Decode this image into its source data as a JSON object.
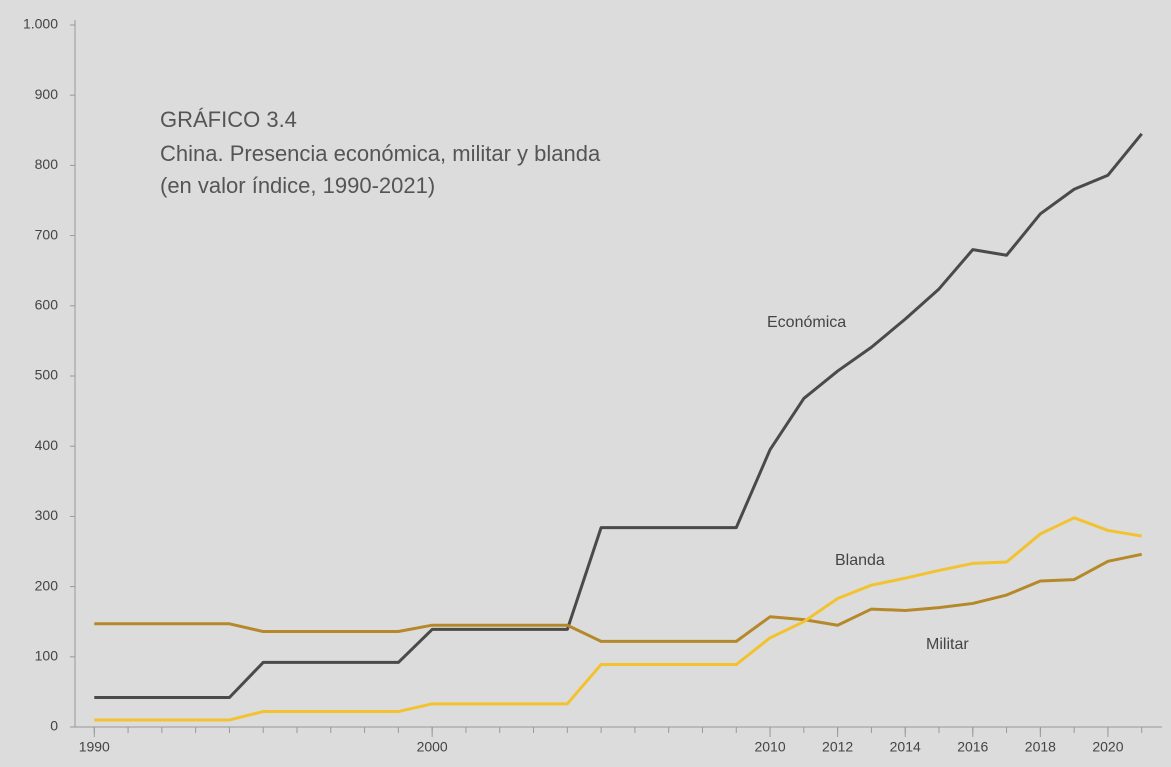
{
  "chart_data": {
    "type": "line",
    "title": "GRÁFICO 3.4",
    "subtitle": [
      "China. Presencia económica, militar y blanda",
      "(en valor índice, 1990-2021)"
    ],
    "x": [
      1990,
      1991,
      1992,
      1993,
      1994,
      1995,
      1996,
      1997,
      1998,
      1999,
      2000,
      2001,
      2002,
      2003,
      2004,
      2005,
      2006,
      2007,
      2008,
      2009,
      2010,
      2011,
      2012,
      2013,
      2014,
      2015,
      2016,
      2017,
      2018,
      2019,
      2020,
      2021
    ],
    "series": [
      {
        "name": "Económica",
        "color": "#4a4a4a",
        "values": [
          42,
          42,
          42,
          42,
          42,
          92,
          92,
          92,
          92,
          92,
          139,
          139,
          139,
          139,
          139,
          284,
          284,
          284,
          284,
          284,
          395,
          468,
          507,
          541,
          581,
          624,
          680,
          672,
          731,
          766,
          786,
          845
        ]
      },
      {
        "name": "Militar",
        "color": "#b5892a",
        "values": [
          147,
          147,
          147,
          147,
          147,
          136,
          136,
          136,
          136,
          136,
          145,
          145,
          145,
          145,
          145,
          122,
          122,
          122,
          122,
          122,
          157,
          153,
          145,
          168,
          166,
          170,
          176,
          188,
          208,
          210,
          236,
          246
        ]
      },
      {
        "name": "Blanda",
        "color": "#f2c230",
        "values": [
          10,
          10,
          10,
          10,
          10,
          22,
          22,
          22,
          22,
          22,
          33,
          33,
          33,
          33,
          33,
          89,
          89,
          89,
          89,
          89,
          127,
          150,
          183,
          202,
          212,
          223,
          233,
          235,
          275,
          298,
          280,
          272
        ]
      }
    ],
    "xlim": [
      1989.4,
      2021.6
    ],
    "xticks": [
      1990,
      2000,
      2010,
      2012,
      2014,
      2016,
      2018,
      2020
    ],
    "ylim": [
      0,
      1000
    ],
    "yticks": [
      0,
      100,
      200,
      300,
      400,
      500,
      600,
      700,
      800,
      900,
      {
        "value": 1000,
        "label": "1.000"
      }
    ],
    "grid": false
  }
}
